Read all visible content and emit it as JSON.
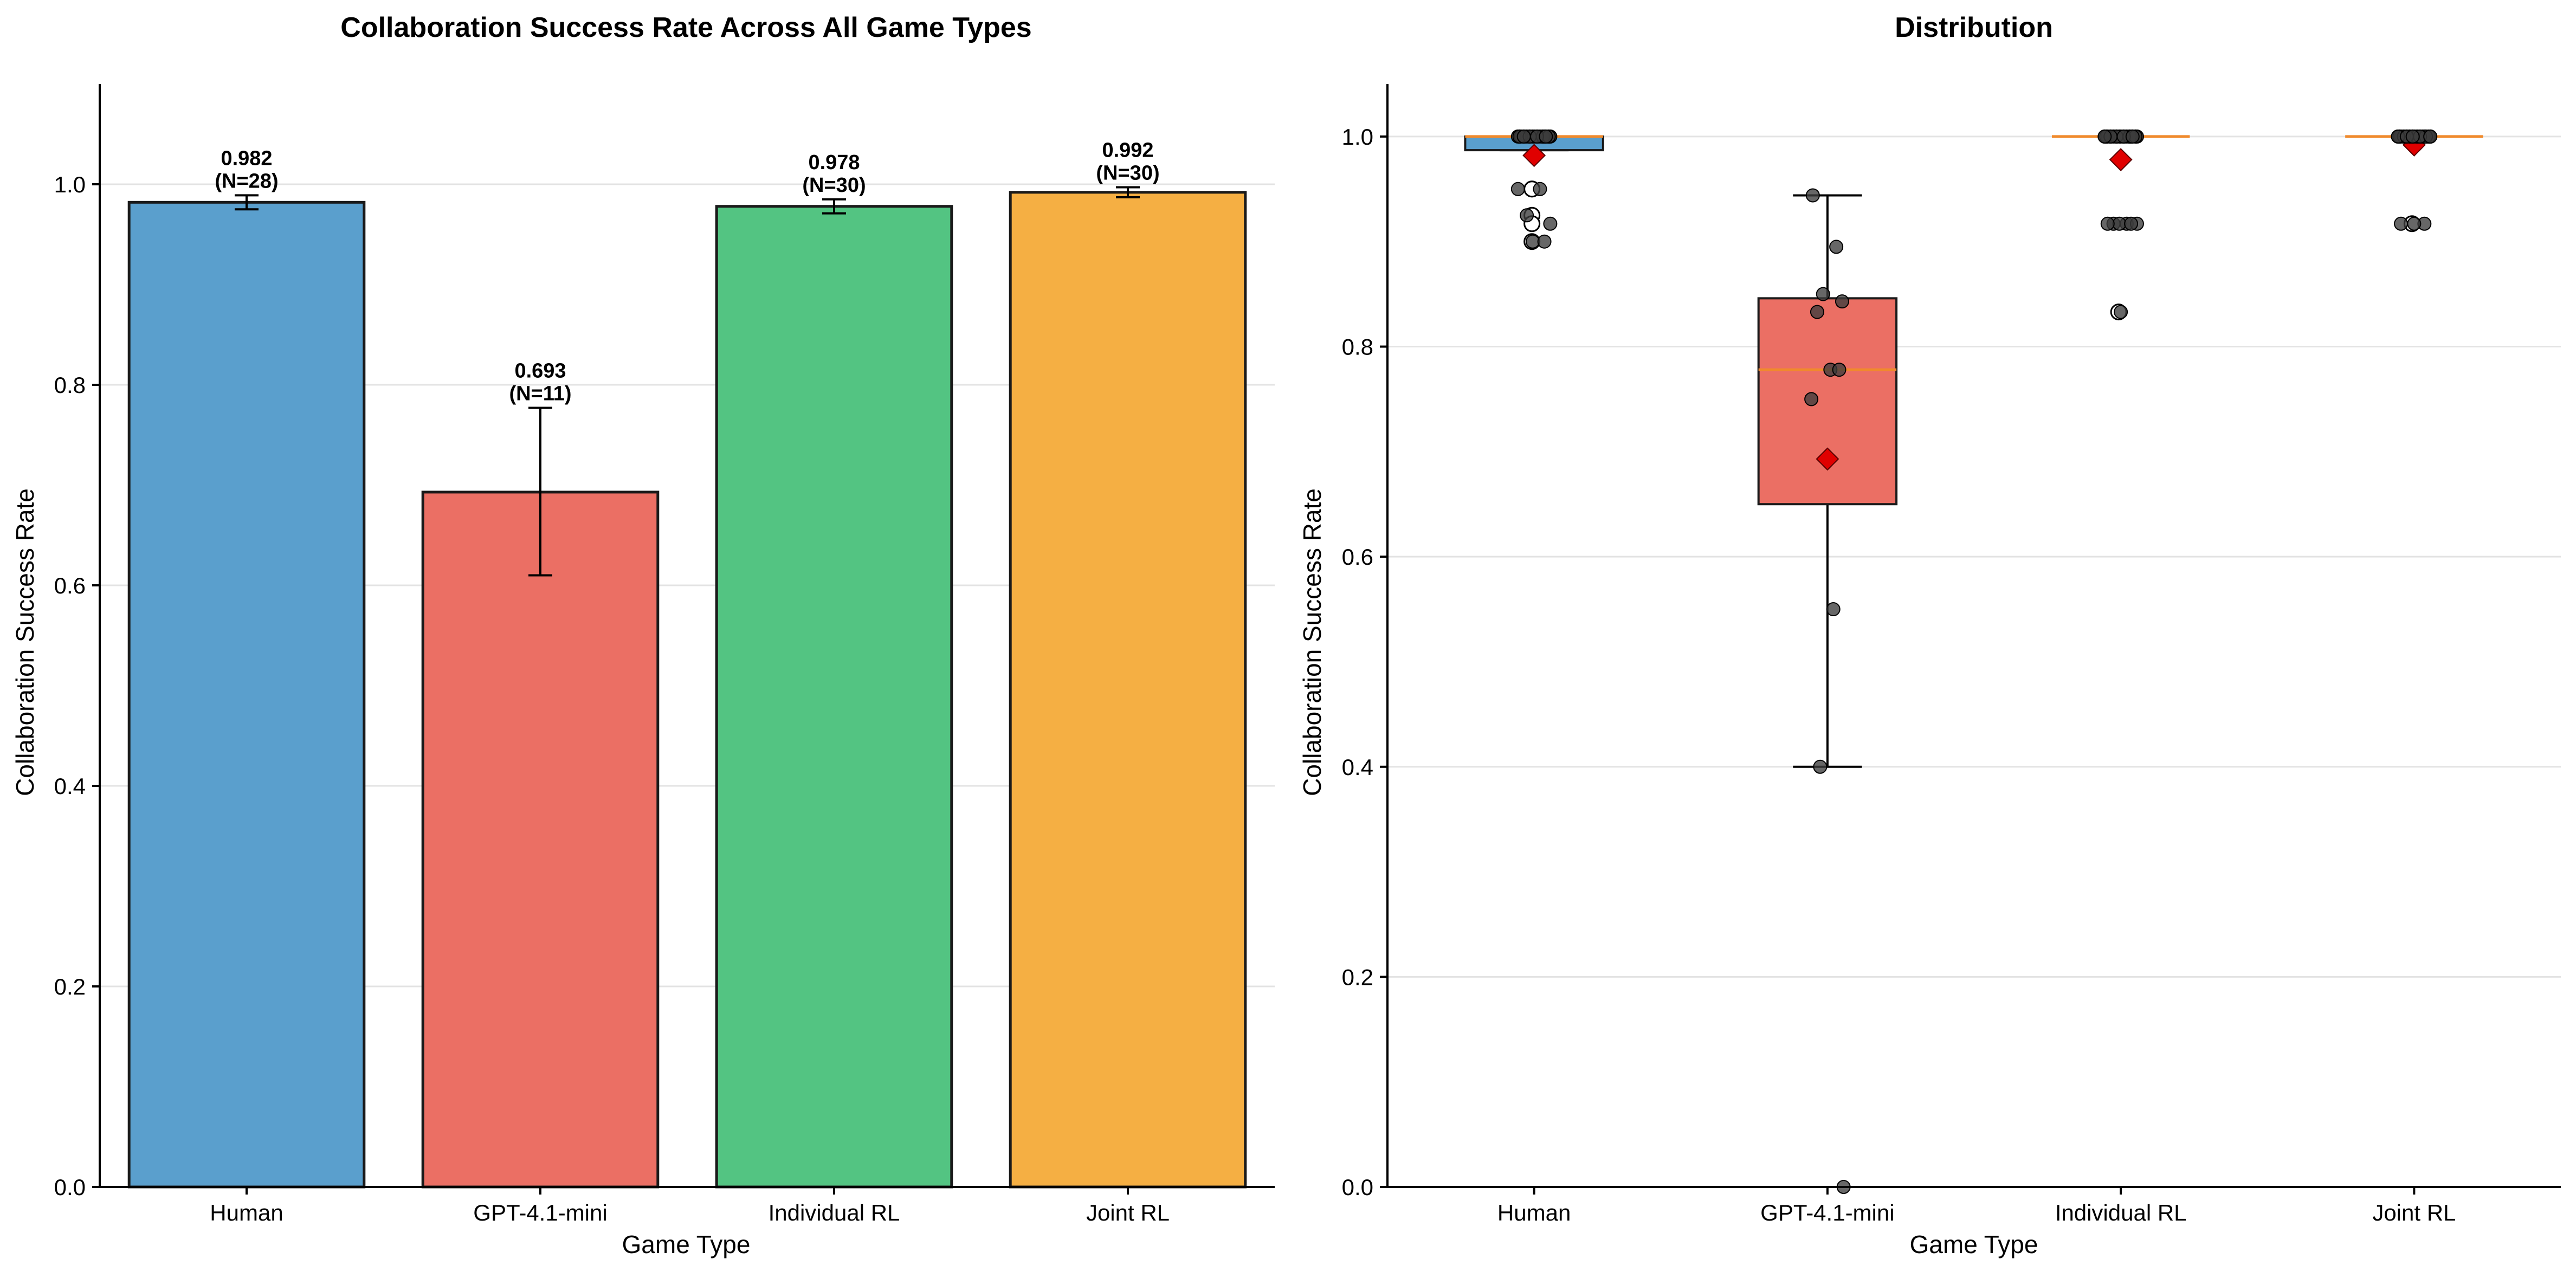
{
  "chart_data": [
    {
      "type": "bar",
      "title": "Collaboration Success Rate Across All Game Types",
      "xlabel": "Game Type",
      "ylabel": "Collaboration Success Rate",
      "ylim": [
        0,
        1.1
      ],
      "yticks": [
        0.0,
        0.2,
        0.4,
        0.6,
        0.8,
        1.0
      ],
      "ytick_labels": [
        "0.0",
        "0.2",
        "0.4",
        "0.6",
        "0.8",
        "1.0"
      ],
      "grid": "y",
      "categories": [
        "Human",
        "GPT-4.1-mini",
        "Individual RL",
        "Joint RL"
      ],
      "values": [
        0.982,
        0.693,
        0.978,
        0.992
      ],
      "error_low": [
        0.975,
        0.61,
        0.971,
        0.987
      ],
      "error_high": [
        0.989,
        0.777,
        0.985,
        0.997
      ],
      "value_labels": [
        "0.982",
        "0.693",
        "0.978",
        "0.992"
      ],
      "n_labels": [
        "(N=28)",
        "(N=11)",
        "(N=30)",
        "(N=30)"
      ],
      "colors": [
        "#5a9fcd",
        "#eb6f64",
        "#53c482",
        "#f5af43"
      ]
    },
    {
      "type": "box",
      "title": "Distribution",
      "xlabel": "Game Type",
      "ylabel": "Collaboration Success Rate",
      "ylim": [
        0,
        1.05
      ],
      "yticks": [
        0.0,
        0.2,
        0.4,
        0.6,
        0.8,
        1.0
      ],
      "ytick_labels": [
        "0.0",
        "0.2",
        "0.4",
        "0.6",
        "0.8",
        "1.0"
      ],
      "grid": "y",
      "categories": [
        "Human",
        "GPT-4.1-mini",
        "Individual RL",
        "Joint RL"
      ],
      "colors": [
        "#5a9fcd",
        "#eb6f64",
        "#53c482",
        "#f5af43"
      ],
      "median_color": "#f08a2c",
      "mean_color": "#e00000",
      "boxes": [
        {
          "q1": 0.987,
          "median": 1.0,
          "q3": 1.0,
          "whisker_low": 0.987,
          "whisker_high": 1.0,
          "mean": 0.982,
          "outliers": [
            0.95,
            0.95,
            0.925,
            0.917,
            0.9
          ]
        },
        {
          "q1": 0.65,
          "median": 0.778,
          "q3": 0.846,
          "whisker_low": 0.4,
          "whisker_high": 0.944,
          "mean": 0.693,
          "outliers": []
        },
        {
          "q1": 1.0,
          "median": 1.0,
          "q3": 1.0,
          "whisker_low": 1.0,
          "whisker_high": 1.0,
          "mean": 0.978,
          "outliers": [
            0.833
          ]
        },
        {
          "q1": 1.0,
          "median": 1.0,
          "q3": 1.0,
          "whisker_low": 1.0,
          "whisker_high": 1.0,
          "mean": 0.992,
          "outliers": [
            0.917
          ]
        }
      ],
      "points": [
        [
          1.0,
          1.0,
          1.0,
          1.0,
          1.0,
          1.0,
          1.0,
          1.0,
          1.0,
          1.0,
          1.0,
          1.0,
          1.0,
          1.0,
          1.0,
          1.0,
          1.0,
          1.0,
          1.0,
          1.0,
          1.0,
          1.0,
          0.95,
          0.95,
          0.925,
          0.917,
          0.9,
          0.9
        ],
        [
          0.944,
          0.895,
          0.85,
          0.843,
          0.833,
          0.778,
          0.778,
          0.75,
          0.55,
          0.4,
          0.0
        ],
        [
          1.0,
          1.0,
          1.0,
          1.0,
          1.0,
          1.0,
          1.0,
          1.0,
          1.0,
          1.0,
          1.0,
          1.0,
          1.0,
          1.0,
          1.0,
          1.0,
          1.0,
          1.0,
          1.0,
          1.0,
          1.0,
          1.0,
          1.0,
          0.917,
          0.917,
          0.917,
          0.917,
          0.917,
          0.917,
          0.833
        ],
        [
          1.0,
          1.0,
          1.0,
          1.0,
          1.0,
          1.0,
          1.0,
          1.0,
          1.0,
          1.0,
          1.0,
          1.0,
          1.0,
          1.0,
          1.0,
          1.0,
          1.0,
          1.0,
          1.0,
          1.0,
          1.0,
          1.0,
          1.0,
          1.0,
          1.0,
          1.0,
          1.0,
          0.917,
          0.917,
          0.917
        ]
      ]
    }
  ]
}
